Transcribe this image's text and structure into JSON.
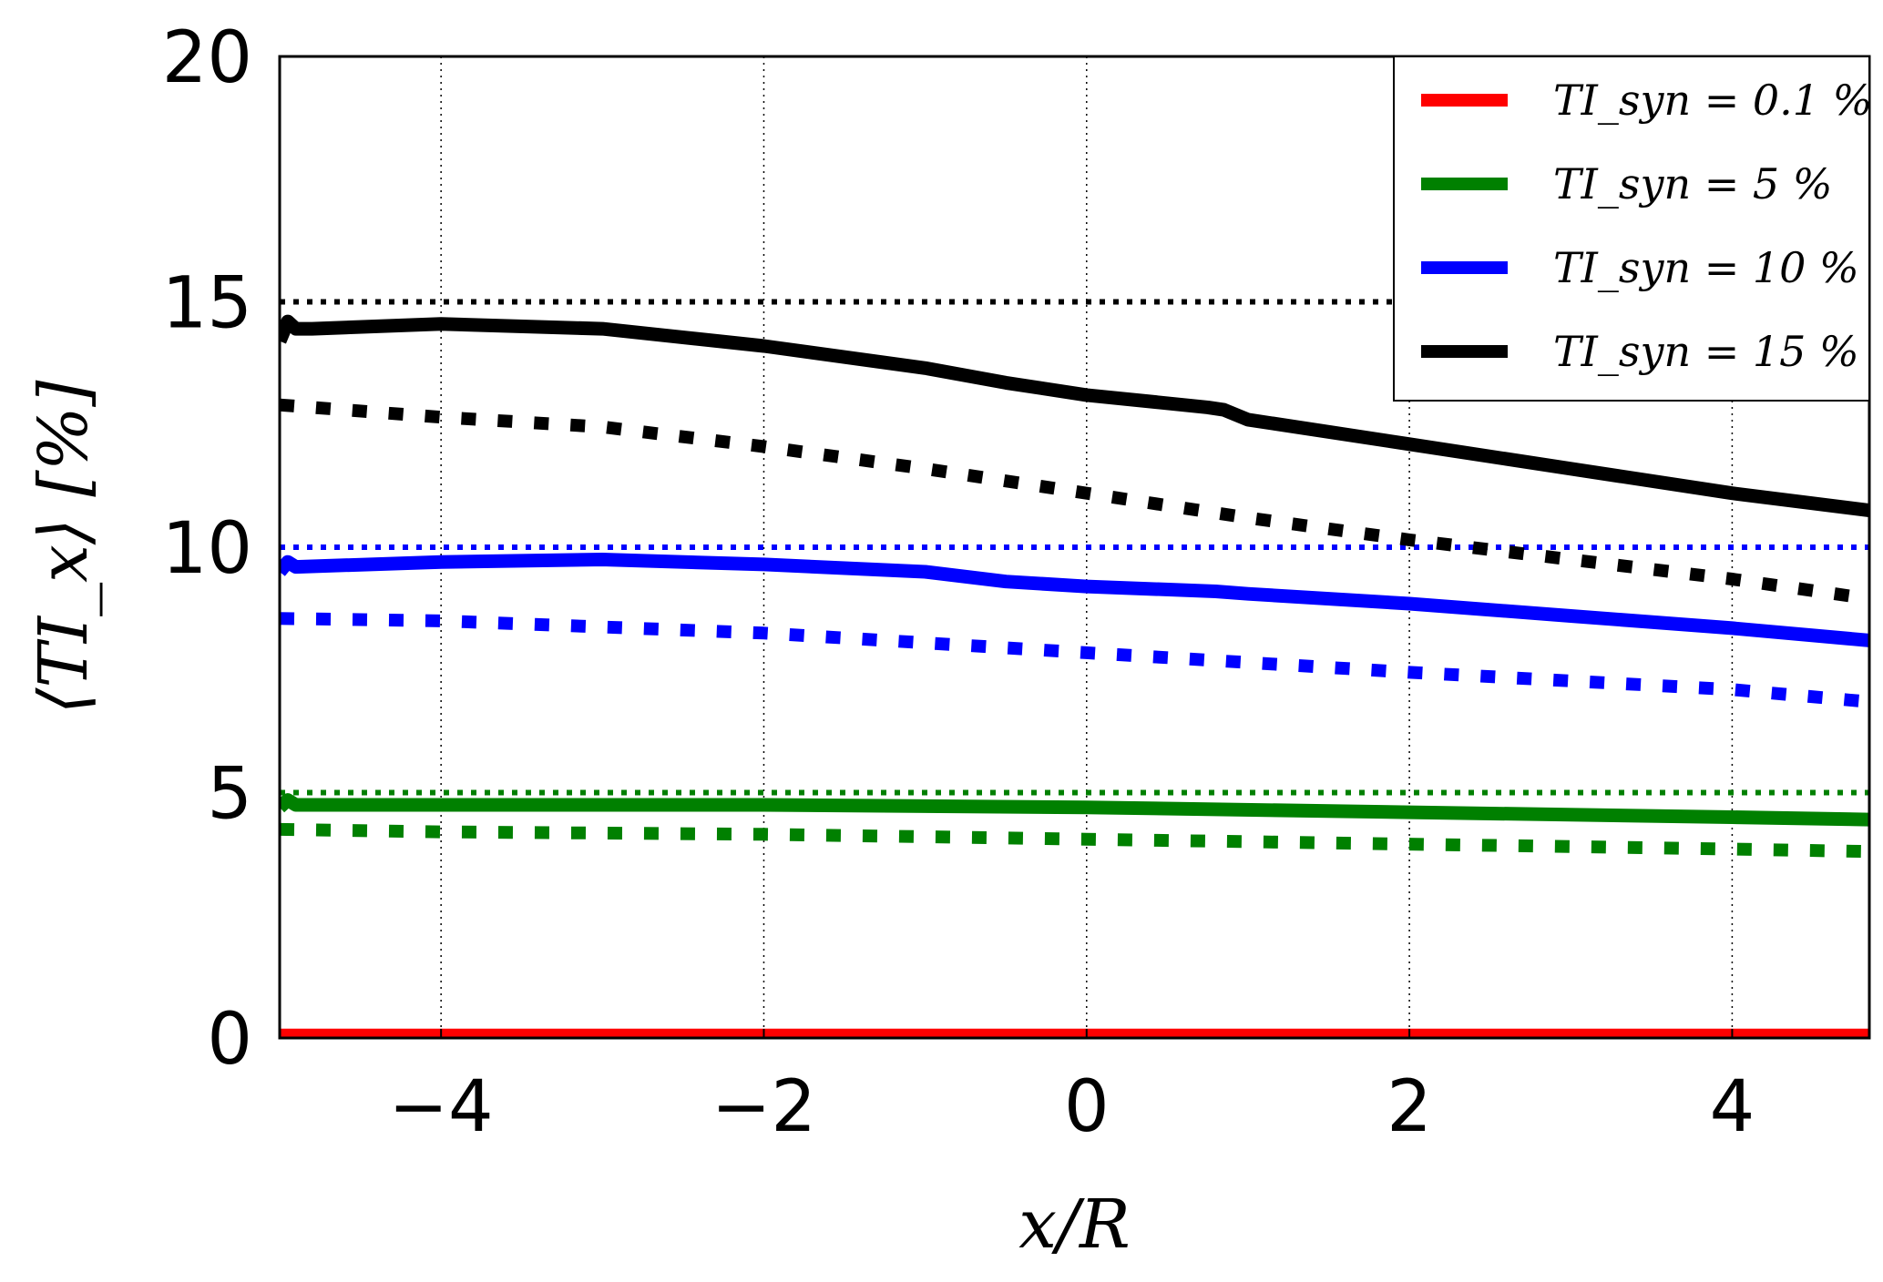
{
  "chart_data": {
    "type": "line",
    "title": "",
    "xlabel": "x/R",
    "ylabel": "⟨TI_x⟩ [%]",
    "xlim": [
      -5,
      4.85
    ],
    "ylim": [
      0,
      20
    ],
    "xticks": [
      -4,
      -2,
      0,
      2,
      4
    ],
    "xtick_labels": [
      "−4",
      "−2",
      "0",
      "2",
      "4"
    ],
    "yticks": [
      0,
      5,
      10,
      15,
      20
    ],
    "ytick_labels": [
      "0",
      "5",
      "10",
      "15",
      "20"
    ],
    "grid": true,
    "legend_position": "top-right",
    "legend": [
      {
        "label": "TI_syn = 0.1 %",
        "color": "#ff0000"
      },
      {
        "label": "TI_syn = 5 %",
        "color": "#008000"
      },
      {
        "label": "TI_syn = 10 %",
        "color": "#0000ff"
      },
      {
        "label": "TI_syn = 15 %",
        "color": "#000000"
      }
    ],
    "series": [
      {
        "color": "#ff0000",
        "style": "solid",
        "x": [
          -5,
          4.85
        ],
        "y": [
          0.05,
          0.05
        ]
      },
      {
        "color": "#008000",
        "style": "dotted",
        "x": [
          -5,
          4.85
        ],
        "y": [
          5.0,
          5.0
        ]
      },
      {
        "color": "#008000",
        "style": "solid",
        "x": [
          -5,
          -4.95,
          -4.9,
          -4,
          -2,
          0,
          2,
          4,
          4.85
        ],
        "y": [
          4.7,
          4.85,
          4.75,
          4.75,
          4.75,
          4.7,
          4.6,
          4.5,
          4.45
        ]
      },
      {
        "color": "#008000",
        "style": "dashed",
        "x": [
          -5,
          -4,
          -2,
          0,
          2,
          4,
          4.85
        ],
        "y": [
          4.25,
          4.2,
          4.15,
          4.05,
          3.95,
          3.85,
          3.8
        ]
      },
      {
        "color": "#0000ff",
        "style": "dotted",
        "x": [
          -5,
          4.85
        ],
        "y": [
          10.0,
          10.0
        ]
      },
      {
        "color": "#0000ff",
        "style": "solid",
        "x": [
          -5,
          -4.95,
          -4.9,
          -4,
          -3,
          -2,
          -1,
          -0.5,
          0,
          0.8,
          1,
          2,
          3,
          4,
          4.85
        ],
        "y": [
          9.5,
          9.7,
          9.6,
          9.7,
          9.75,
          9.65,
          9.5,
          9.3,
          9.2,
          9.1,
          9.05,
          8.85,
          8.6,
          8.35,
          8.1
        ]
      },
      {
        "color": "#0000ff",
        "style": "dashed",
        "x": [
          -5,
          -4,
          -2,
          0,
          2,
          4,
          4.85
        ],
        "y": [
          8.55,
          8.5,
          8.25,
          7.85,
          7.45,
          7.1,
          6.85
        ]
      },
      {
        "color": "#000000",
        "style": "dotted",
        "x": [
          -5,
          4.85
        ],
        "y": [
          15.0,
          15.0
        ]
      },
      {
        "color": "#000000",
        "style": "solid",
        "x": [
          -5,
          -4.95,
          -4.9,
          -4.8,
          -4,
          -3,
          -2,
          -1,
          -0.5,
          0,
          0.75,
          0.85,
          1,
          2,
          3,
          4,
          4.85
        ],
        "y": [
          14.2,
          14.6,
          14.45,
          14.45,
          14.55,
          14.45,
          14.1,
          13.65,
          13.35,
          13.1,
          12.85,
          12.8,
          12.6,
          12.1,
          11.6,
          11.1,
          10.75
        ]
      },
      {
        "color": "#000000",
        "style": "dashed",
        "x": [
          -5,
          -4,
          -3,
          -2,
          -1,
          0,
          1,
          2,
          3,
          4,
          4.85
        ],
        "y": [
          12.9,
          12.65,
          12.45,
          12.05,
          11.6,
          11.1,
          10.6,
          10.15,
          9.75,
          9.35,
          8.95
        ]
      }
    ]
  }
}
